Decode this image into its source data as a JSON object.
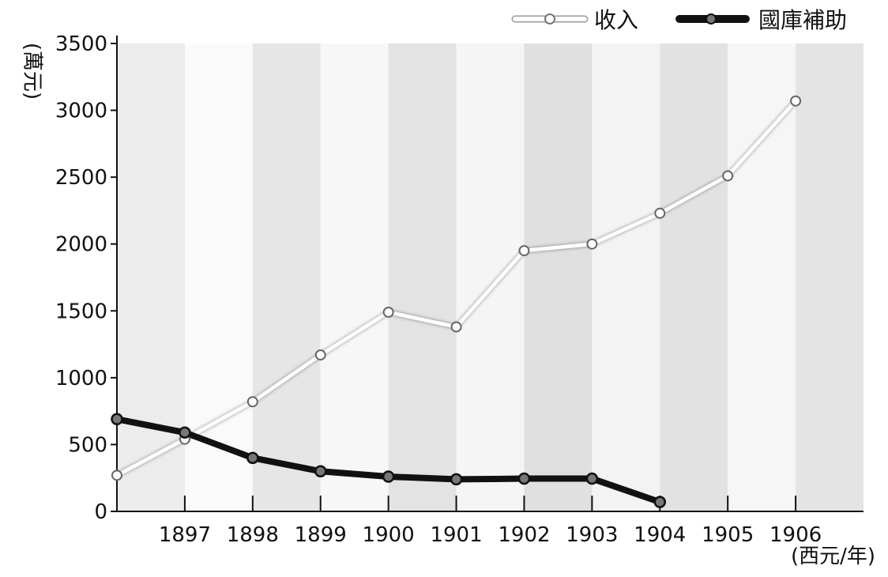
{
  "chart_data": {
    "type": "line",
    "x": [
      1896,
      1897,
      1898,
      1899,
      1900,
      1901,
      1902,
      1903,
      1904,
      1905,
      1906
    ],
    "xtick_labels": [
      "1897",
      "1898",
      "1899",
      "1900",
      "1901",
      "1902",
      "1903",
      "1904",
      "1905",
      "1906"
    ],
    "xlabel": "(西元/年)",
    "ylabel": "(萬元)",
    "ylim": [
      0,
      3500
    ],
    "yticks": [
      "0",
      "500",
      "1000",
      "1500",
      "2000",
      "2500",
      "3000",
      "3500"
    ],
    "legend_position": "top-right",
    "series": [
      {
        "name": "收入",
        "x": [
          1896,
          1897,
          1898,
          1899,
          1900,
          1901,
          1902,
          1903,
          1904,
          1905,
          1906
        ],
        "values": [
          270,
          540,
          820,
          1170,
          1490,
          1380,
          1950,
          2000,
          2230,
          2510,
          3070
        ],
        "color": "#ffffff"
      },
      {
        "name": "國庫補助",
        "x": [
          1896,
          1897,
          1898,
          1899,
          1900,
          1901,
          1902,
          1903,
          1904
        ],
        "values": [
          690,
          590,
          400,
          300,
          260,
          240,
          245,
          245,
          70
        ],
        "color": "#111111"
      }
    ],
    "background_bands": [
      "#ececec",
      "#fafafa",
      "#e6e6e6",
      "#f7f7f7",
      "#e3e3e3",
      "#f5f5f5",
      "#e0e0e0",
      "#f3f3f3",
      "#e2e2e2",
      "#f6f6f6",
      "#e4e4e4"
    ]
  }
}
